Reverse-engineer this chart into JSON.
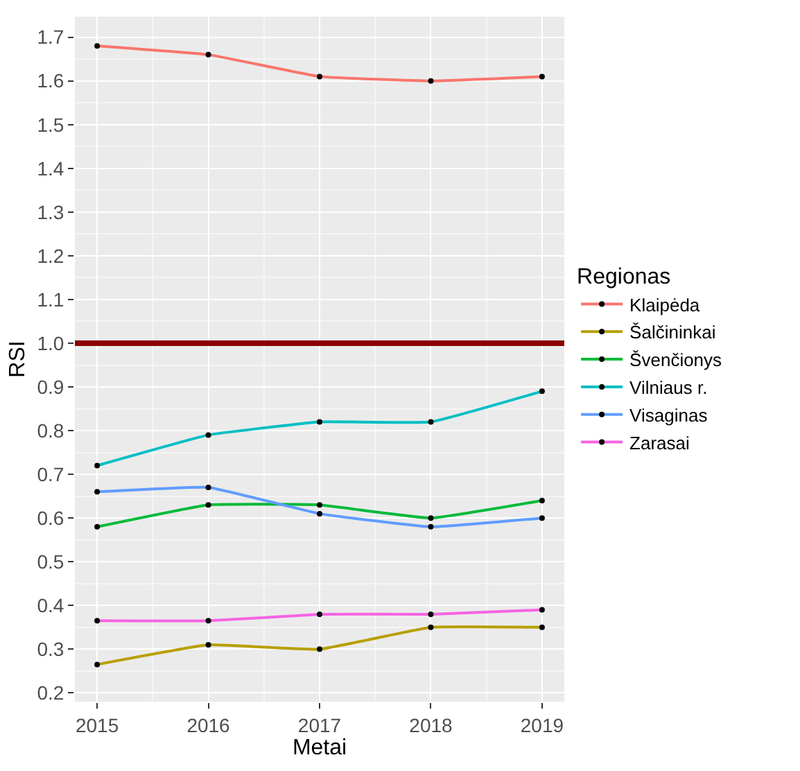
{
  "chart_data": {
    "type": "line",
    "xlabel": "Metai",
    "ylabel": "RSI",
    "legend_title": "Regionas",
    "x": [
      2015,
      2016,
      2017,
      2018,
      2019
    ],
    "series": [
      {
        "name": "Klaipėda",
        "color": "#f8766d",
        "values": [
          1.68,
          1.66,
          1.61,
          1.6,
          1.61
        ]
      },
      {
        "name": "Šalčininkai",
        "color": "#b79f00",
        "values": [
          0.265,
          0.31,
          0.3,
          0.35,
          0.35
        ]
      },
      {
        "name": "Švenčionys",
        "color": "#00ba38",
        "values": [
          0.58,
          0.63,
          0.63,
          0.6,
          0.64
        ]
      },
      {
        "name": "Vilniaus r.",
        "color": "#00bfc4",
        "values": [
          0.72,
          0.79,
          0.82,
          0.82,
          0.89
        ]
      },
      {
        "name": "Visaginas",
        "color": "#619cff",
        "values": [
          0.66,
          0.67,
          0.61,
          0.58,
          0.6
        ]
      },
      {
        "name": "Zarasai",
        "color": "#f564e3",
        "values": [
          0.365,
          0.365,
          0.38,
          0.38,
          0.39
        ]
      }
    ],
    "xlim": [
      2014.8,
      2019.2
    ],
    "xticks": [
      2015,
      2016,
      2017,
      2018,
      2019
    ],
    "ylim": [
      0.18,
      1.747
    ],
    "yticks": [
      {
        "value": 0.2,
        "label": "0.2"
      },
      {
        "value": 0.3,
        "label": "0.3"
      },
      {
        "value": 0.4,
        "label": "0.4"
      },
      {
        "value": 0.5,
        "label": "0.5"
      },
      {
        "value": 0.6,
        "label": "0.6"
      },
      {
        "value": 0.7,
        "label": "0.7"
      },
      {
        "value": 0.8,
        "label": "0.8"
      },
      {
        "value": 0.9,
        "label": "0.9"
      },
      {
        "value": 1.0,
        "label": "1.0"
      },
      {
        "value": 1.1,
        "label": "1.1"
      },
      {
        "value": 1.2,
        "label": "1.2"
      },
      {
        "value": 1.3,
        "label": "1.3"
      },
      {
        "value": 1.4,
        "label": "1.4"
      },
      {
        "value": 1.5,
        "label": "1.5"
      },
      {
        "value": 1.6,
        "label": "1.6"
      },
      {
        "value": 1.7,
        "label": "1.7"
      }
    ],
    "ref_lines": [
      {
        "axis": "y",
        "value": 1.0,
        "color": "#8b0000"
      }
    ],
    "grid": true,
    "legend": "right",
    "marker": "circle",
    "line_style": "solid"
  }
}
